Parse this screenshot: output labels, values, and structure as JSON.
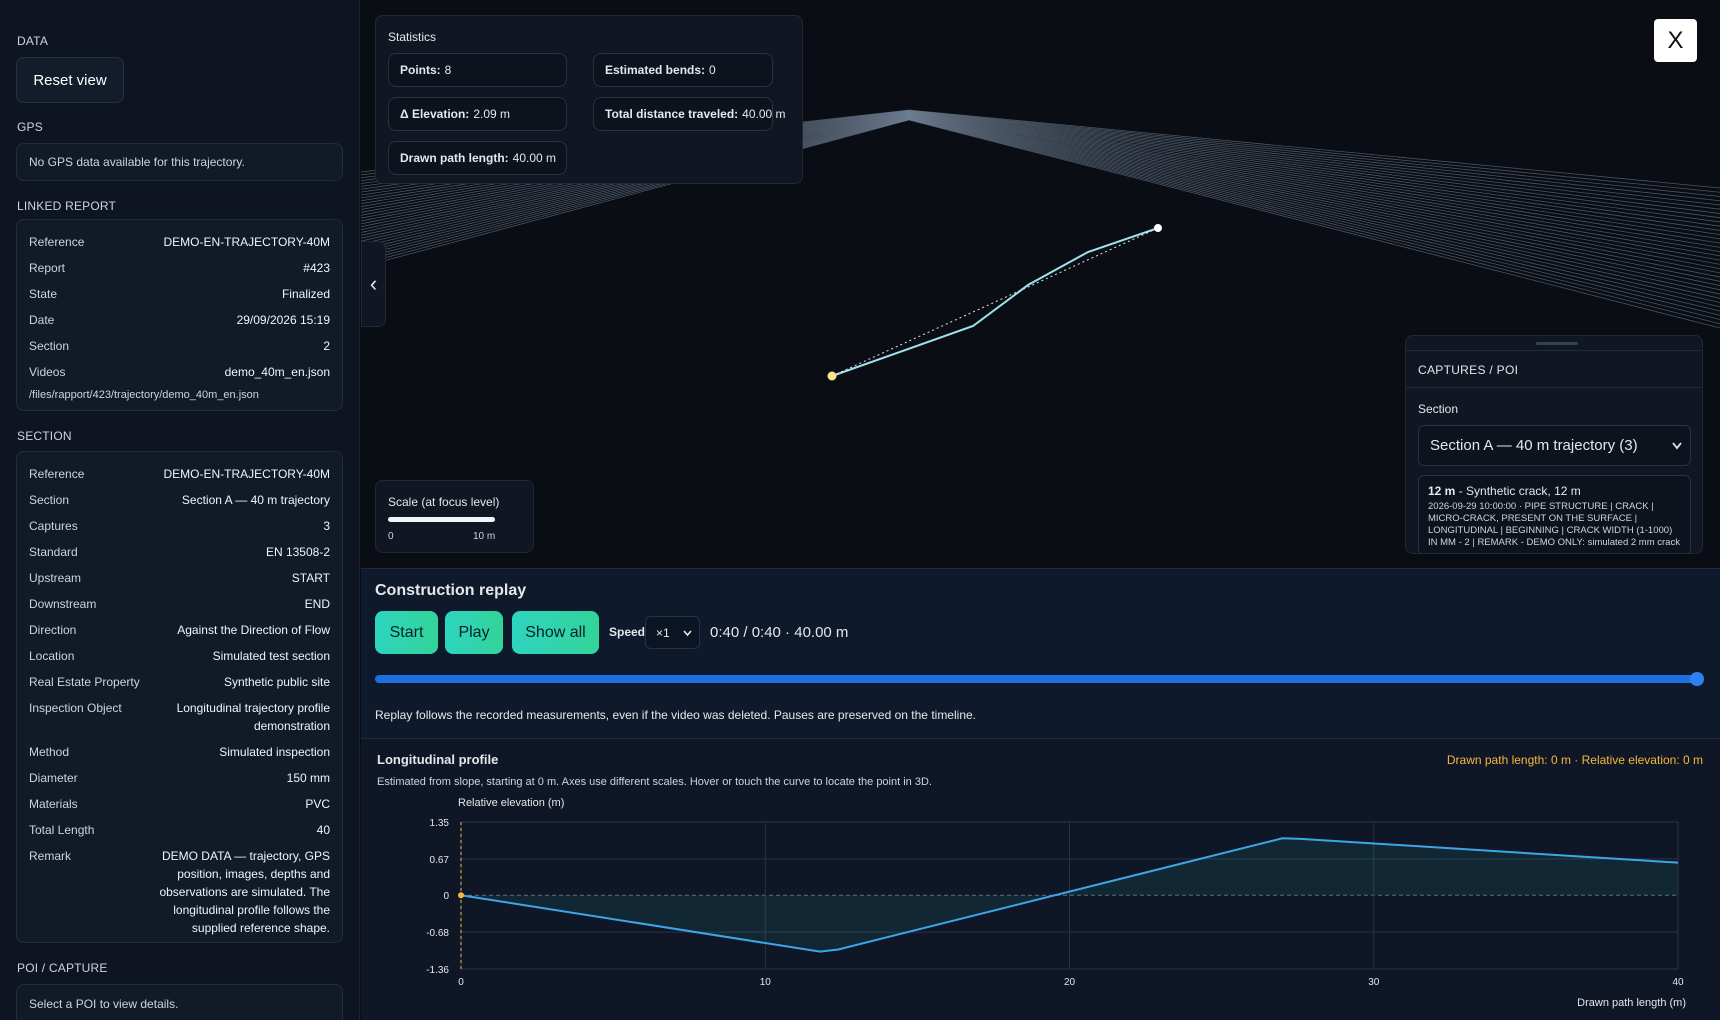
{
  "sidebar": {
    "data_heading": "DATA",
    "reset_button": "Reset view",
    "gps_heading": "GPS",
    "gps_text": "No GPS data available for this trajectory.",
    "report_heading": "LINKED REPORT",
    "report_rows": [
      [
        "Reference",
        "DEMO-EN-TRAJECTORY-40M"
      ],
      [
        "Report",
        "#423"
      ],
      [
        "State",
        "Finalized"
      ],
      [
        "Date",
        "29/09/2026 15:19"
      ],
      [
        "Section",
        "2"
      ],
      [
        "Videos",
        "demo_40m_en.json"
      ]
    ],
    "report_path": "/files/rapport/423/trajectory/demo_40m_en.json",
    "section_heading": "SECTION",
    "section_rows": [
      [
        "Reference",
        "DEMO-EN-TRAJECTORY-40M"
      ],
      [
        "Section",
        "Section A — 40 m trajectory"
      ],
      [
        "Captures",
        "3"
      ],
      [
        "Standard",
        "EN 13508-2"
      ],
      [
        "Upstream",
        "START"
      ],
      [
        "Downstream",
        "END"
      ],
      [
        "Direction",
        "Against the Direction of Flow"
      ],
      [
        "Location",
        "Simulated test section"
      ],
      [
        "Real Estate Property",
        "Synthetic public site"
      ],
      [
        "Inspection Object",
        "Longitudinal trajectory profile demonstration"
      ],
      [
        "Method",
        "Simulated inspection"
      ],
      [
        "Diameter",
        "150 mm"
      ],
      [
        "Materials",
        "PVC"
      ],
      [
        "Total Length",
        "40"
      ],
      [
        "Remark",
        "DEMO DATA — trajectory, GPS position, images, depths and observations are simulated. The longitudinal profile follows the supplied reference shape."
      ]
    ],
    "poi_heading": "POI / CAPTURE",
    "poi_text": "Select a POI to view details."
  },
  "statistics": {
    "title": "Statistics",
    "items": [
      {
        "label": "Points:",
        "value": "8"
      },
      {
        "label": "Estimated bends:",
        "value": "0"
      },
      {
        "label": "Δ Elevation:",
        "value": "2.09 m"
      },
      {
        "label": "Total distance traveled:",
        "value": "40.00 m"
      },
      {
        "label": "Drawn path length:",
        "value": "40.00 m"
      }
    ]
  },
  "scale": {
    "title": "Scale (at focus level)",
    "min": "0",
    "max": "10 m"
  },
  "close_button": "X",
  "collapse_button": "‹",
  "captures": {
    "title": "CAPTURES / POI",
    "section_label": "Section",
    "select": "Section A — 40 m trajectory (3)",
    "item_title": "12 m",
    "item_subtitle": "- Synthetic crack, 12 m",
    "item_text": "2026-09-29 10:00:00 · PIPE STRUCTURE | CRACK | MICRO-CRACK, PRESENT ON THE SURFACE | LONGITUDINAL | BEGINNING | CRACK WIDTH (1-1000) IN MM - 2 | REMARK - DEMO ONLY: simulated 2 mm crack"
  },
  "replay": {
    "title": "Construction replay",
    "buttons": [
      "Start",
      "Play",
      "Show all"
    ],
    "speed_label": "Speed",
    "speed": "×1",
    "time": "0:40 / 0:40 · 40.00 m",
    "note": "Replay follows the recorded measurements, even if the video was deleted. Pauses are preserved on the timeline."
  },
  "profile": {
    "title": "Longitudinal profile",
    "status": "Drawn path length: 0 m · Relative elevation: 0 m",
    "subtitle": "Estimated from slope, starting at 0 m. Axes use different scales. Hover or touch the curve to locate the point in 3D."
  },
  "chart_data": {
    "type": "line",
    "y_label": "Relative elevation (m)",
    "x_label": "Drawn path length (m)",
    "x": [
      0,
      11.8,
      12.4,
      27,
      27.6,
      40
    ],
    "values": [
      0,
      -1.04,
      -1.0,
      1.05,
      1.04,
      0.6
    ],
    "color": "#3ea6e6",
    "xlim": [
      0,
      40
    ],
    "ylim": [
      -1.36,
      1.35
    ],
    "xticks": [
      0,
      10,
      20,
      30,
      40
    ],
    "yticks": [
      1.35,
      0.67,
      0,
      -0.68,
      -1.36
    ],
    "grid": true
  }
}
